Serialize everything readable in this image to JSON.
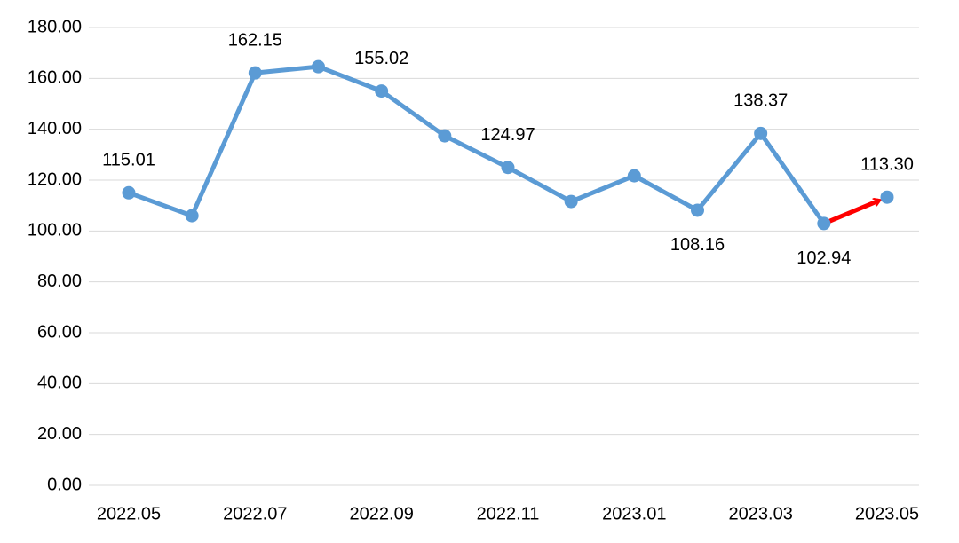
{
  "chart_data": {
    "type": "line",
    "categories": [
      "2022.05",
      null,
      "2022.07",
      null,
      "2022.09",
      null,
      "2022.11",
      null,
      "2023.01",
      null,
      "2023.03",
      null,
      "2023.05"
    ],
    "series": [
      {
        "color": "#5b9bd5",
        "values": [
          115.01,
          106.0,
          162.15,
          164.6,
          155.02,
          137.4,
          124.97,
          111.6,
          121.7,
          108.16,
          138.37,
          102.94,
          113.3
        ],
        "value_labels": [
          "115.01",
          null,
          "162.15",
          null,
          "155.02",
          null,
          "124.97",
          null,
          null,
          "108.16",
          "138.37",
          "102.94",
          "113.30"
        ]
      }
    ],
    "highlight_color": "#ff0000",
    "ylim": [
      0,
      180
    ],
    "yticks": [
      {
        "value": 0,
        "label": "0.00"
      },
      {
        "value": 20,
        "label": "20.00"
      },
      {
        "value": 40,
        "label": "40.00"
      },
      {
        "value": 60,
        "label": "60.00"
      },
      {
        "value": 80,
        "label": "80.00"
      },
      {
        "value": 100,
        "label": "100.00"
      },
      {
        "value": 120,
        "label": "120.00"
      },
      {
        "value": 140,
        "label": "140.00"
      },
      {
        "value": 160,
        "label": "160.00"
      },
      {
        "value": 180,
        "label": "180.00"
      }
    ],
    "grid": true
  }
}
